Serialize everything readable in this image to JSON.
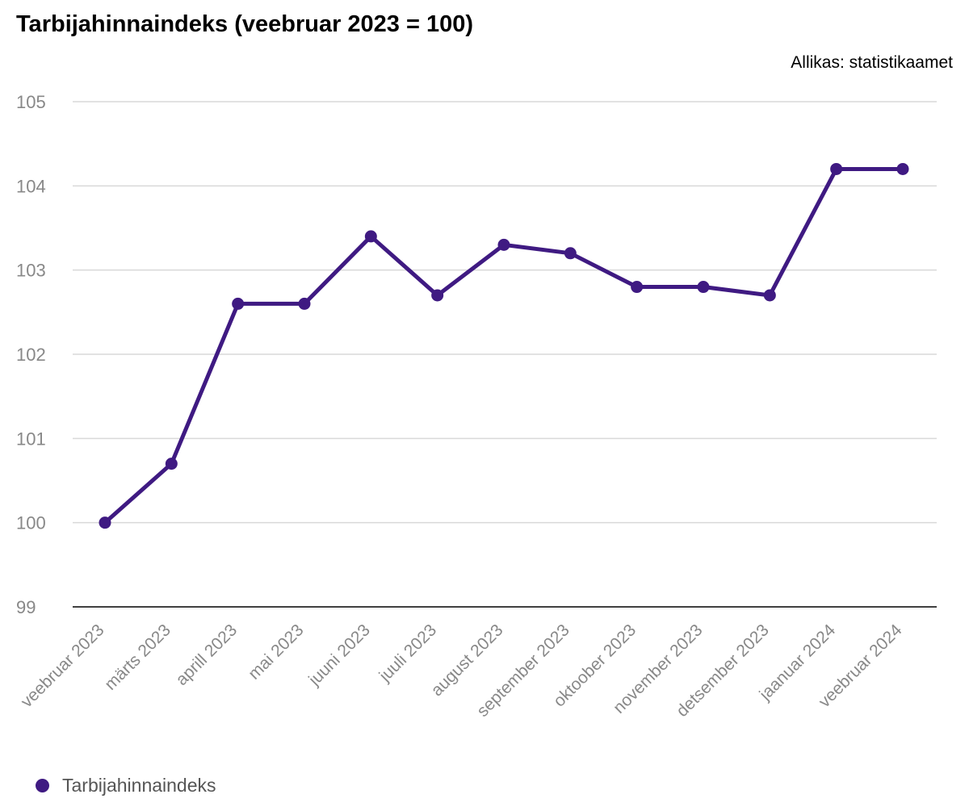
{
  "chart_data": {
    "type": "line",
    "title": "Tarbijahinnaindeks (veebruar 2023 = 100)",
    "source": "Allikas: statistikaamet",
    "categories": [
      "veebruar 2023",
      "märts 2023",
      "aprill 2023",
      "mai 2023",
      "juuni 2023",
      "juuli 2023",
      "august 2023",
      "september 2023",
      "oktoober 2023",
      "november 2023",
      "detsember 2023",
      "jaanuar 2024",
      "veebruar 2024"
    ],
    "series": [
      {
        "name": "Tarbijahinnaindeks",
        "values": [
          100.0,
          100.7,
          102.6,
          102.6,
          103.4,
          102.7,
          103.3,
          103.2,
          102.8,
          102.8,
          102.7,
          104.2,
          104.2
        ],
        "color": "#3f1a82"
      }
    ],
    "ylim": [
      99,
      105
    ],
    "yticks": [
      99,
      100,
      101,
      102,
      103,
      104,
      105
    ],
    "grid": true,
    "legend_position": "bottom-left"
  }
}
